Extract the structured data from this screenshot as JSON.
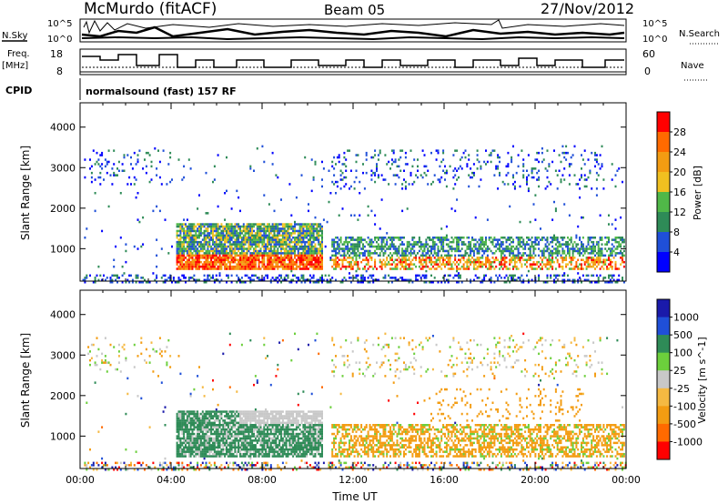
{
  "header": {
    "station": "McMurdo (fitACF)",
    "beam": "Beam 05",
    "date": "27/Nov/2012"
  },
  "noise_panel": {
    "left_label": "N.Sky",
    "right_label": "N.Search",
    "left_ticks": [
      "10^5",
      "10^0"
    ],
    "right_ticks": [
      "10^5",
      "10^0"
    ]
  },
  "freq_panel": {
    "left_label_1": "Freq.",
    "left_label_2": "[MHz]",
    "left_ticks": [
      "18",
      "8"
    ],
    "right_label": "Nave",
    "right_ticks": [
      "60",
      "0"
    ]
  },
  "cpid": {
    "label": "CPID",
    "value": "normalsound (fast) 157 RF"
  },
  "colors": {
    "power": [
      "#0000ff",
      "#1f4fd8",
      "#2e8b57",
      "#50b848",
      "#f0c020",
      "#f39c12",
      "#ff6a00",
      "#ff0000"
    ],
    "velocity": [
      "#ff0000",
      "#ff6a00",
      "#f39c12",
      "#f5b942",
      "#c8c8c8",
      "#6ccf3c",
      "#2e8b57",
      "#1f4fd8",
      "#1a1aaa"
    ]
  },
  "chart_data": [
    {
      "type": "heatmap",
      "title": "Power",
      "ylabel": "Slant Range [km]",
      "xlim": [
        "00:00",
        "00:00"
      ],
      "ylim": [
        200,
        4600
      ],
      "y_ticks": [
        "1000",
        "2000",
        "3000",
        "4000"
      ],
      "colorbar_label": "Power [dB]",
      "colorbar_ticks": [
        "28",
        "24",
        "20",
        "16",
        "12",
        "8",
        "4"
      ],
      "features": [
        {
          "region": "dense echoes 04:00-10:40 UT",
          "range_km": [
            500,
            1700
          ],
          "power_db": "8-28"
        },
        {
          "region": "echoes 11:00-24:00 UT",
          "range_km": [
            500,
            1300
          ],
          "power_db": "4-28"
        },
        {
          "region": "scattered echoes",
          "range_km": [
            2500,
            3500
          ],
          "power_db": "4-12"
        }
      ]
    },
    {
      "type": "heatmap",
      "title": "Velocity",
      "ylabel": "Slant Range [km]",
      "xlabel": "Time UT",
      "x_ticks": [
        "00:00",
        "04:00",
        "08:00",
        "12:00",
        "16:00",
        "20:00",
        "00:00"
      ],
      "ylim": [
        200,
        4600
      ],
      "y_ticks": [
        "1000",
        "2000",
        "3000",
        "4000"
      ],
      "colorbar_label": "Velocity [m s^-1]",
      "colorbar_ticks": [
        "1000",
        "500",
        "100",
        "25",
        "-25",
        "-100",
        "-500",
        "-1000"
      ],
      "features": [
        {
          "region": "04:30-10:40 UT",
          "range_km": [
            500,
            1700
          ],
          "velocity": "25 to 500 (green) and -25 to 25 (grey)"
        },
        {
          "region": "11:00-24:00 UT",
          "range_km": [
            500,
            1800
          ],
          "velocity": "-100 to -500 (orange)"
        }
      ]
    }
  ]
}
